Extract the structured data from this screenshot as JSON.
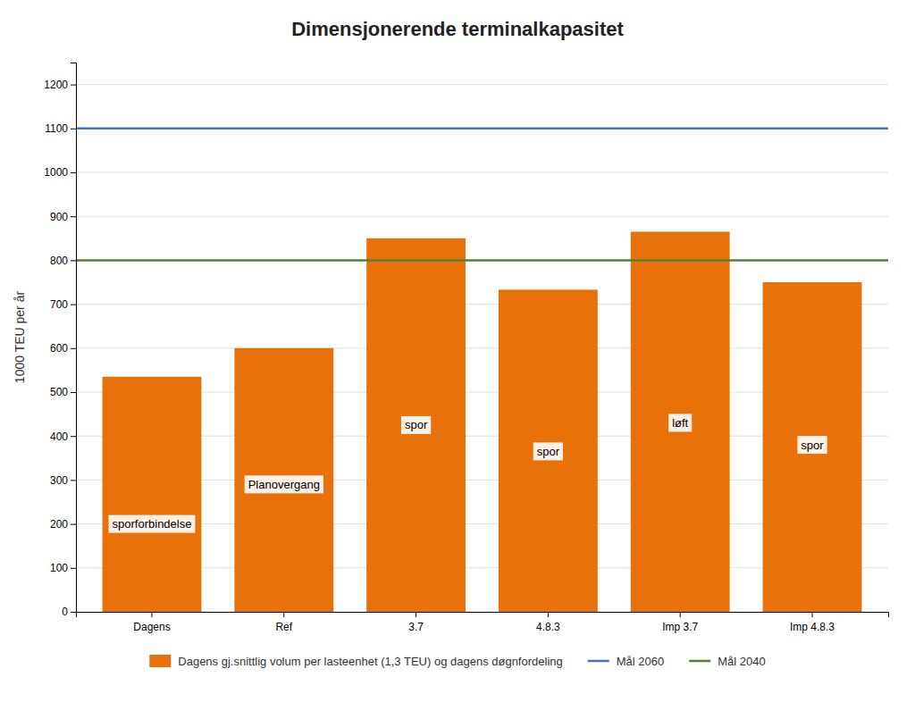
{
  "chart_data": {
    "type": "bar",
    "title": "Dimensjonerende terminalkapasitet",
    "ylabel": "1000 TEU per år",
    "categories": [
      "Dagens",
      "Ref",
      "3.7",
      "4.8.3",
      "Imp 3.7",
      "Imp 4.8.3"
    ],
    "series": [
      {
        "name": "Dagens gj.snittlig volum per lasteenhet (1,3 TEU) og dagens døgnfordeling",
        "color": "#E8710A",
        "values": [
          535,
          600,
          850,
          733,
          865,
          750
        ]
      }
    ],
    "reference_lines": [
      {
        "name": "Mål 2060",
        "value": 1100,
        "color": "#4472C4"
      },
      {
        "name": "Mål 2040",
        "value": 800,
        "color": "#548235"
      }
    ],
    "annotations": [
      {
        "text": "sporforbindelse",
        "x": "Dagens",
        "y": 200
      },
      {
        "text": "Planovergang",
        "x": "Ref",
        "y": 290
      },
      {
        "text": "spor",
        "x": "3.7",
        "y": 425
      },
      {
        "text": "spor",
        "x": "4.8.3",
        "y": 365
      },
      {
        "text": "løft",
        "x": "Imp 3.7",
        "y": 430
      },
      {
        "text": "spor",
        "x": "Imp 4.8.3",
        "y": 380
      }
    ],
    "ylim": [
      0,
      1250
    ],
    "yticks": [
      0,
      100,
      200,
      300,
      400,
      500,
      600,
      700,
      800,
      900,
      1000,
      1100,
      1200
    ],
    "grid": true,
    "legend": "bottom"
  }
}
